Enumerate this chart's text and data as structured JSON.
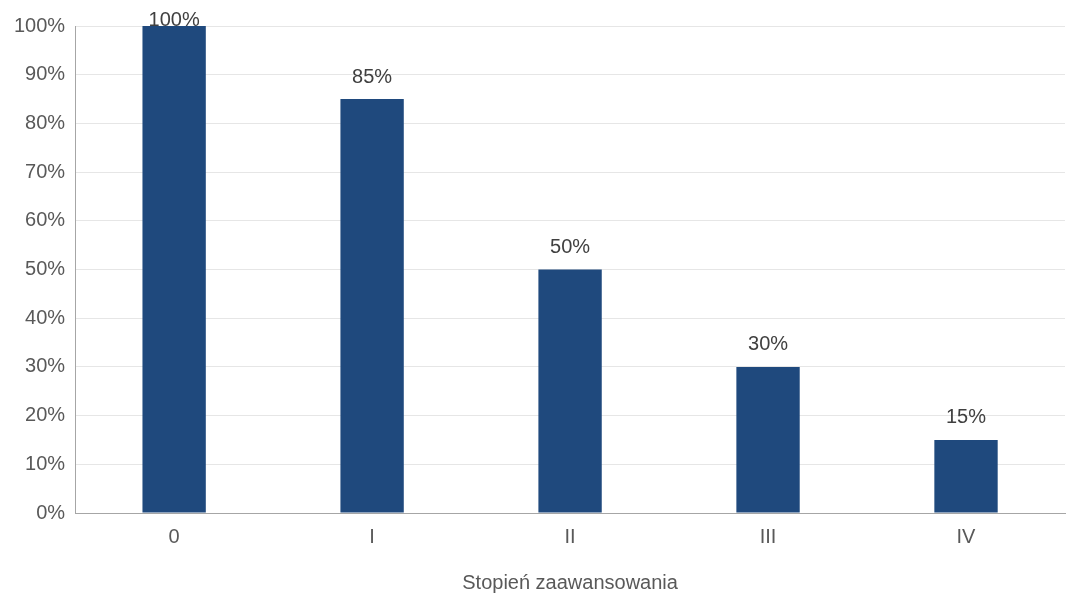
{
  "chart_data": {
    "type": "bar",
    "xlabel": "Stopień zaawansowania",
    "categories": [
      "0",
      "I",
      "II",
      "III",
      "IV"
    ],
    "values": [
      100,
      85,
      50,
      30,
      15
    ],
    "value_labels": [
      "100%",
      "85%",
      "50%",
      "30%",
      "15%"
    ],
    "color": "#1f497d",
    "ylim": [
      0,
      100
    ],
    "yticks": [
      {
        "value": 0,
        "label": "0%"
      },
      {
        "value": 10,
        "label": "10%"
      },
      {
        "value": 20,
        "label": "20%"
      },
      {
        "value": 30,
        "label": "30%"
      },
      {
        "value": 40,
        "label": "40%"
      },
      {
        "value": 50,
        "label": "50%"
      },
      {
        "value": 60,
        "label": "60%"
      },
      {
        "value": 70,
        "label": "70%"
      },
      {
        "value": 80,
        "label": "80%"
      },
      {
        "value": 90,
        "label": "90%"
      },
      {
        "value": 100,
        "label": "100%"
      }
    ],
    "grid": "y",
    "legend": false
  }
}
